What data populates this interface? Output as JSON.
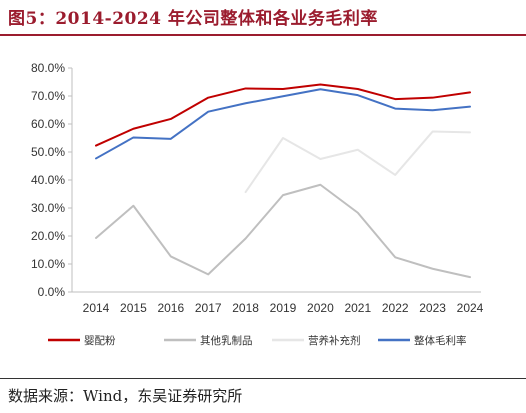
{
  "figure": {
    "title": "图5：2014-2024 年公司整体和各业务毛利率",
    "source": "数据来源：Wind，东吴证券研究所"
  },
  "colors": {
    "title": "#9b1c2e",
    "axis": "#bfbfbf"
  },
  "chart_data": {
    "type": "line",
    "x": [
      "2014",
      "2015",
      "2016",
      "2017",
      "2018",
      "2019",
      "2020",
      "2021",
      "2022",
      "2023",
      "2024"
    ],
    "ylim": [
      0,
      80
    ],
    "yticks": [
      0,
      10,
      20,
      30,
      40,
      50,
      60,
      70,
      80
    ],
    "ytick_labels": [
      "0.0%",
      "10.0%",
      "20.0%",
      "30.0%",
      "40.0%",
      "50.0%",
      "60.0%",
      "70.0%",
      "80.0%"
    ],
    "grid": false,
    "legend_position": "bottom",
    "series": [
      {
        "name": "婴配粉",
        "color": "#c00000",
        "values": [
          52.3,
          58.3,
          61.8,
          69.4,
          72.7,
          72.5,
          74.1,
          72.5,
          68.9,
          69.4,
          71.3
        ]
      },
      {
        "name": "其他乳制品",
        "color": "#bfbfbf",
        "values": [
          19.3,
          30.8,
          12.7,
          6.3,
          19.1,
          34.6,
          38.3,
          28.3,
          12.4,
          8.3,
          5.3
        ]
      },
      {
        "name": "营养补充剂",
        "color": "#e6e6e6",
        "values": [
          null,
          null,
          null,
          null,
          35.7,
          55.0,
          47.5,
          50.8,
          41.8,
          57.3,
          57.0
        ]
      },
      {
        "name": "整体毛利率",
        "color": "#4472c4",
        "values": [
          47.7,
          55.2,
          54.7,
          64.4,
          67.4,
          69.9,
          72.4,
          70.3,
          65.5,
          64.9,
          66.2
        ]
      }
    ]
  }
}
